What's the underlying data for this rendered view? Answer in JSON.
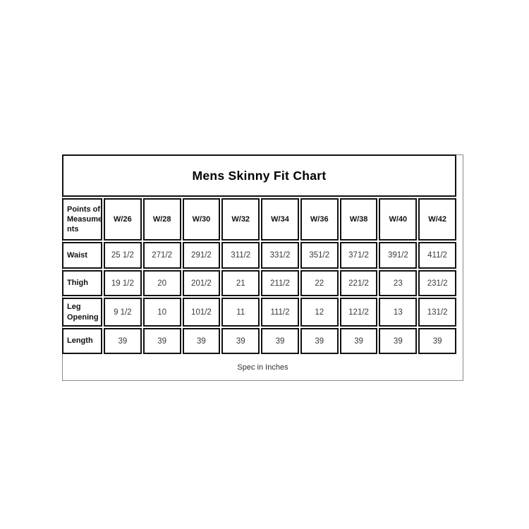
{
  "chart_data": {
    "type": "table",
    "title": "Mens Skinny Fit Chart",
    "corner_header": "Points of\nMeasume\nnts",
    "columns": [
      "W/26",
      "W/28",
      "W/30",
      "W/32",
      "W/34",
      "W/36",
      "W/38",
      "W/40",
      "W/42"
    ],
    "rows": [
      {
        "label": "Waist",
        "values": [
          "25 1/2",
          "271/2",
          "291/2",
          "311/2",
          "331/2",
          "351/2",
          "371/2",
          "391/2",
          "411/2"
        ]
      },
      {
        "label": "Thigh",
        "values": [
          "19 1/2",
          "20",
          "201/2",
          "21",
          "211/2",
          "22",
          "221/2",
          "23",
          "231/2"
        ]
      },
      {
        "label": "Leg\nOpening",
        "values": [
          "9 1/2",
          "10",
          "101/2",
          "11",
          "111/2",
          "12",
          "121/2",
          "13",
          "131/2"
        ]
      },
      {
        "label": "Length",
        "values": [
          "39",
          "39",
          "39",
          "39",
          "39",
          "39",
          "39",
          "39",
          "39"
        ]
      }
    ],
    "footer": "Spec in Inches",
    "layout": {
      "grid_on": true,
      "legend": "none"
    },
    "colors": {
      "cell_border": "#111111",
      "outer_border": "#8a8a8a",
      "value_text": "#3a3a3a",
      "label_text": "#111111",
      "background": "#ffffff"
    }
  }
}
